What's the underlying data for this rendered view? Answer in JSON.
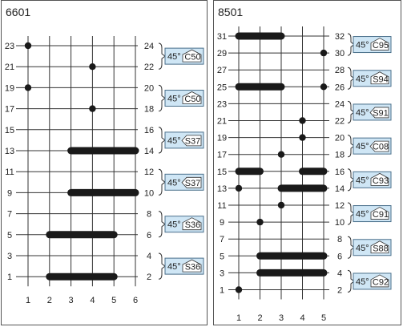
{
  "left": {
    "title": "6601",
    "x_ticks": [
      "1",
      "2",
      "3",
      "4",
      "5",
      "6"
    ],
    "y_left": [
      "23",
      "21",
      "19",
      "17",
      "15",
      "13",
      "11",
      "9",
      "7",
      "5",
      "3",
      "1"
    ],
    "y_right": [
      "24",
      "22",
      "20",
      "18",
      "16",
      "14",
      "12",
      "10",
      "8",
      "6",
      "4",
      "2"
    ],
    "dots": [
      {
        "col": 1,
        "row": 0
      },
      {
        "col": 4,
        "row": 1
      },
      {
        "col": 1,
        "row": 2
      },
      {
        "col": 4,
        "row": 3
      }
    ],
    "bars": [
      {
        "from": 3,
        "to": 6,
        "row": 5
      },
      {
        "from": 3,
        "to": 6,
        "row": 7
      },
      {
        "from": 2,
        "to": 5,
        "row": 9
      },
      {
        "from": 2,
        "to": 5,
        "row": 11
      }
    ],
    "brackets": [
      {
        "top": 0,
        "bottom": 1,
        "angle": "45°",
        "code": "C50",
        "icon": "house"
      },
      {
        "top": 2,
        "bottom": 3,
        "angle": "45°",
        "code": "C50",
        "icon": "house"
      },
      {
        "top": 4,
        "bottom": 5,
        "angle": "45°",
        "code": "S37",
        "icon": "arrow"
      },
      {
        "top": 6,
        "bottom": 7,
        "angle": "45°",
        "code": "S37",
        "icon": "arrow"
      },
      {
        "top": 8,
        "bottom": 9,
        "angle": "45°",
        "code": "S36",
        "icon": "house"
      },
      {
        "top": 10,
        "bottom": 11,
        "angle": "45°",
        "code": "S36",
        "icon": "house"
      }
    ]
  },
  "right": {
    "title": "8501",
    "x_ticks": [
      "1",
      "2",
      "3",
      "4",
      "5"
    ],
    "y_left": [
      "31",
      "29",
      "27",
      "25",
      "23",
      "21",
      "19",
      "17",
      "15",
      "13",
      "11",
      "9",
      "7",
      "5",
      "3",
      "1"
    ],
    "y_right": [
      "32",
      "30",
      "28",
      "26",
      "24",
      "22",
      "20",
      "18",
      "16",
      "14",
      "12",
      "10",
      "8",
      "6",
      "4",
      "2"
    ],
    "dots": [
      {
        "col": 5,
        "row": 1
      },
      {
        "col": 5,
        "row": 3
      },
      {
        "col": 4,
        "row": 5
      },
      {
        "col": 4,
        "row": 6
      },
      {
        "col": 3,
        "row": 7
      },
      {
        "col": 1,
        "row": 9
      },
      {
        "col": 3,
        "row": 10
      },
      {
        "col": 2,
        "row": 11
      },
      {
        "col": 1,
        "row": 15
      }
    ],
    "bars": [
      {
        "from": 1,
        "to": 3,
        "row": 0
      },
      {
        "from": 1,
        "to": 3,
        "row": 3
      },
      {
        "from": 1,
        "to": 2,
        "row": 8
      },
      {
        "from": 4,
        "to": 5,
        "row": 8
      },
      {
        "from": 3,
        "to": 5,
        "row": 9
      },
      {
        "from": 2,
        "to": 5,
        "row": 13
      },
      {
        "from": 2,
        "to": 5,
        "row": 14
      }
    ],
    "brackets": [
      {
        "top": 0,
        "bottom": 1,
        "angle": "45°",
        "code": "C95",
        "icon": "house"
      },
      {
        "top": 2,
        "bottom": 3,
        "angle": "45°",
        "code": "S94",
        "icon": "house"
      },
      {
        "top": 4,
        "bottom": 5,
        "angle": "45°",
        "code": "S91",
        "icon": "arrow"
      },
      {
        "top": 6,
        "bottom": 7,
        "angle": "45°",
        "code": "C08",
        "icon": "arrow"
      },
      {
        "top": 8,
        "bottom": 9,
        "angle": "45°",
        "code": "C93",
        "icon": "house"
      },
      {
        "top": 10,
        "bottom": 11,
        "angle": "45°",
        "code": "C91",
        "icon": "house"
      },
      {
        "top": 12,
        "bottom": 13,
        "angle": "45°",
        "code": "S88",
        "icon": "house"
      },
      {
        "top": 14,
        "bottom": 15,
        "angle": "45°",
        "code": "C92",
        "icon": "house"
      }
    ]
  }
}
